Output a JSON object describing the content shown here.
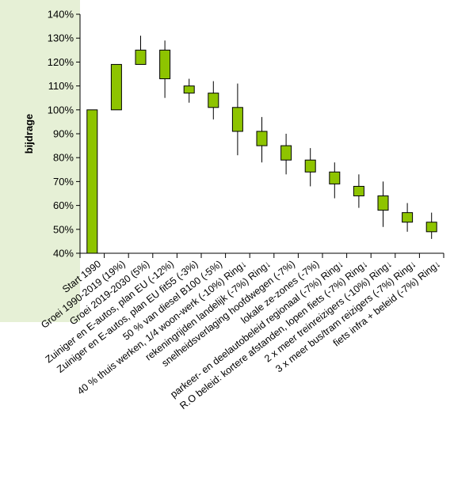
{
  "chart_data": {
    "type": "candlestick",
    "title": "",
    "xlabel": "",
    "ylabel": "bijdrage",
    "ylim": [
      40,
      140
    ],
    "yticks": [
      "40%",
      "50%",
      "60%",
      "70%",
      "80%",
      "90%",
      "100%",
      "110%",
      "120%",
      "130%",
      "140%"
    ],
    "grid": false,
    "legend": "none",
    "colors": {
      "bar_fill": "#8ec400",
      "bar_edge": "#000000",
      "axis_panel": "#e6f0d6"
    },
    "categories": [
      "Start 1990",
      "Groei 1990-2019 (19%)",
      "Groei 2019-2030 (5%)",
      "Zuiniger en E-autos, plan EU (-12%)",
      "Zuiniger en E-autos, plan EU fit55 (-3%)",
      "50 % van diesel B100 (-5%)",
      "40 % thuis werken, 1/4 woon-werk (-10%) Ring↓",
      "rekeningrijden landelijk (-7%) Ring↓",
      "snelheidsverlaging hoofdwegen (-7%)",
      "lokale ze-zones (-7%)",
      "parkeer- en deelautobeleid regionaal (-7%) Ring↓",
      "R.O beleid: kortere afstanden, lopen fiets (-7%) Ring↓",
      "2 x meer treinreizigers (-10%) Ring↓",
      "3 x meer bus/tram reizigers (-7%) Ring↓",
      "fiets infra + beleid (-7%) Ring↓"
    ],
    "boxes": [
      {
        "low": 40,
        "high": 100,
        "whisker_low": 40,
        "whisker_high": 100
      },
      {
        "low": 100,
        "high": 119,
        "whisker_low": 100,
        "whisker_high": 119
      },
      {
        "low": 119,
        "high": 125,
        "whisker_low": 119,
        "whisker_high": 131
      },
      {
        "low": 113,
        "high": 125,
        "whisker_low": 105,
        "whisker_high": 129
      },
      {
        "low": 107,
        "high": 110,
        "whisker_low": 103,
        "whisker_high": 113
      },
      {
        "low": 101,
        "high": 107,
        "whisker_low": 96,
        "whisker_high": 112
      },
      {
        "low": 91,
        "high": 101,
        "whisker_low": 81,
        "whisker_high": 111
      },
      {
        "low": 85,
        "high": 91,
        "whisker_low": 78,
        "whisker_high": 97
      },
      {
        "low": 79,
        "high": 85,
        "whisker_low": 73,
        "whisker_high": 90
      },
      {
        "low": 74,
        "high": 79,
        "whisker_low": 68,
        "whisker_high": 84
      },
      {
        "low": 69,
        "high": 74,
        "whisker_low": 63,
        "whisker_high": 78
      },
      {
        "low": 64,
        "high": 68,
        "whisker_low": 59,
        "whisker_high": 73
      },
      {
        "low": 58,
        "high": 64,
        "whisker_low": 51,
        "whisker_high": 70
      },
      {
        "low": 53,
        "high": 57,
        "whisker_low": 49,
        "whisker_high": 61
      },
      {
        "low": 49,
        "high": 53,
        "whisker_low": 46,
        "whisker_high": 57
      }
    ]
  }
}
